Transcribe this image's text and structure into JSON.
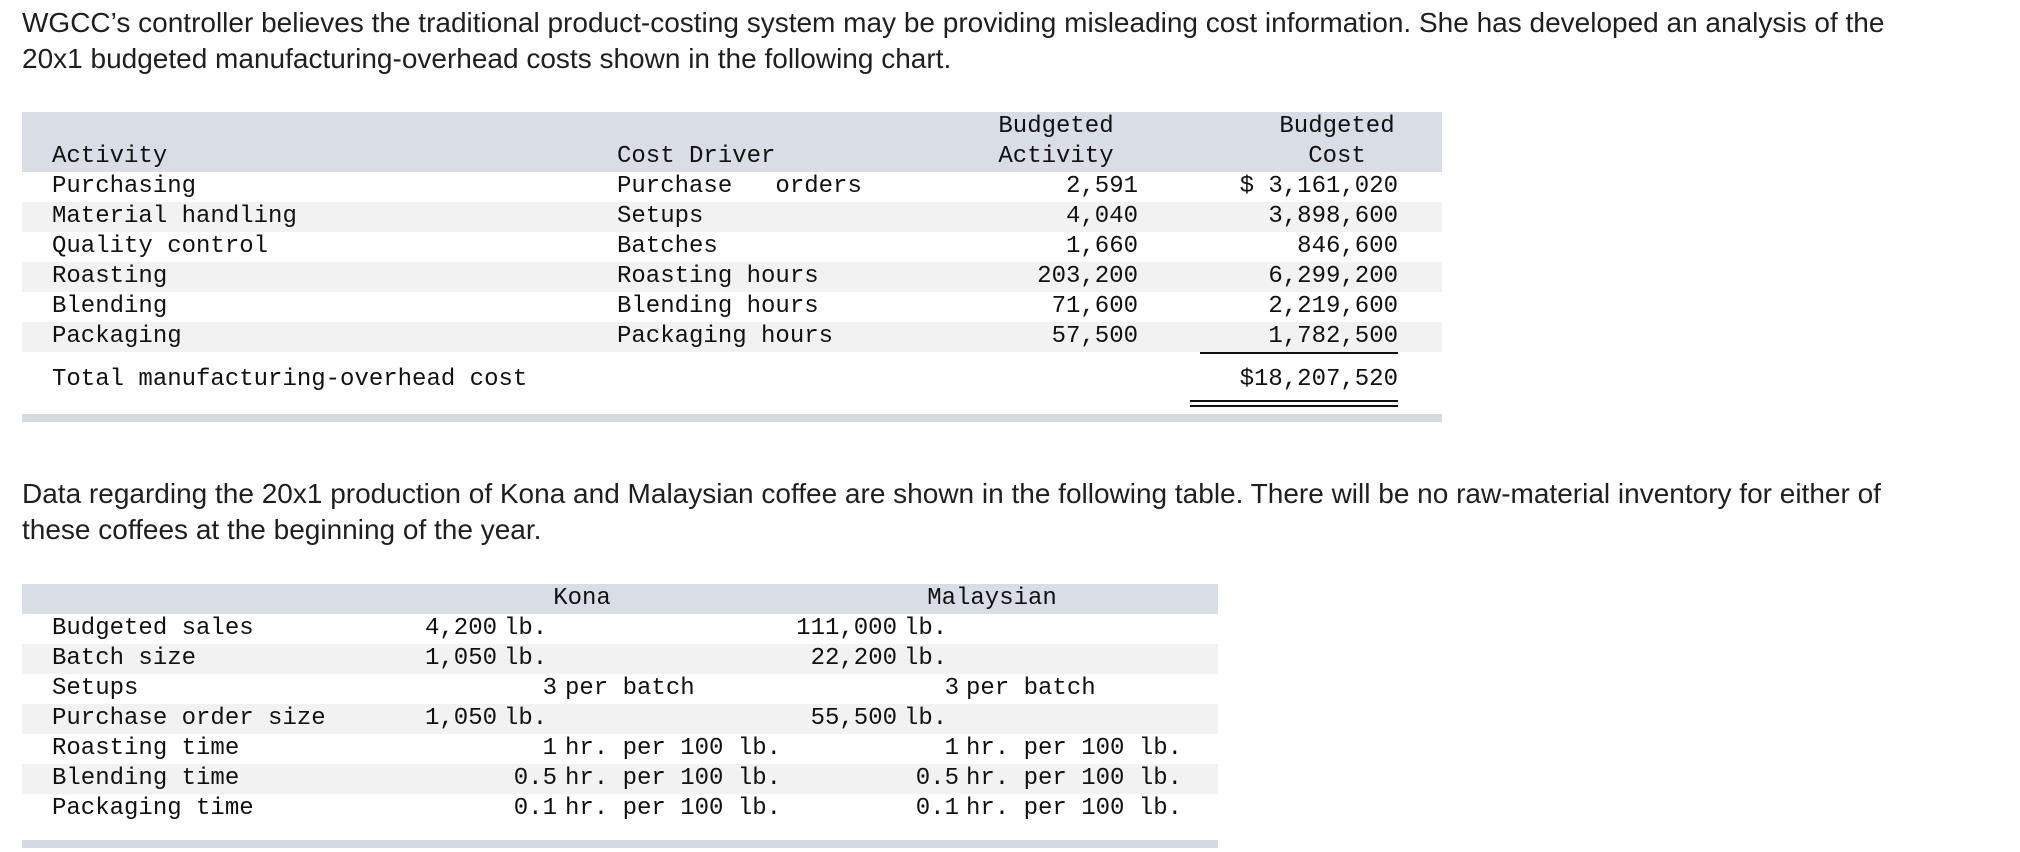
{
  "intro_paragraph": "WGCC’s controller believes the traditional product-costing system may be providing misleading cost information. She has developed an analysis of the 20x1 budgeted manufacturing-overhead costs shown in the following chart.",
  "overhead_table": {
    "headers": {
      "activity": "Activity",
      "cost_driver": "Cost Driver",
      "budgeted_activity_line1": "Budgeted",
      "budgeted_activity_line2": "Activity",
      "budgeted_cost_line1": "Budgeted",
      "budgeted_cost_line2": "Cost"
    },
    "rows": [
      {
        "activity": "Purchasing",
        "driver": "Purchase   orders",
        "budgeted_activity": "2,591",
        "budgeted_cost": "$ 3,161,020"
      },
      {
        "activity": "Material handling",
        "driver": "Setups",
        "budgeted_activity": "4,040",
        "budgeted_cost": "3,898,600"
      },
      {
        "activity": "Quality control",
        "driver": "Batches",
        "budgeted_activity": "1,660",
        "budgeted_cost": "846,600"
      },
      {
        "activity": "Roasting",
        "driver": "Roasting hours",
        "budgeted_activity": "203,200",
        "budgeted_cost": "6,299,200"
      },
      {
        "activity": "Blending",
        "driver": "Blending hours",
        "budgeted_activity": "71,600",
        "budgeted_cost": "2,219,600"
      },
      {
        "activity": "Packaging",
        "driver": "Packaging hours",
        "budgeted_activity": "57,500",
        "budgeted_cost": "1,782,500"
      }
    ],
    "total_label": "Total manufacturing-overhead cost",
    "total_value": "$18,207,520"
  },
  "second_paragraph": "Data regarding the 20x1 production of Kona and Malaysian coffee are shown in the following table. There will be no raw-material inventory for either of these coffees at the beginning of the year.",
  "production_table": {
    "headers": {
      "kona": "Kona",
      "malaysian": "Malaysian"
    },
    "rows": [
      {
        "label": "Budgeted sales",
        "kona_num": "4,200",
        "kona_unit": "lb.",
        "mal_num": "111,000",
        "mal_unit": "lb."
      },
      {
        "label": "Batch size",
        "kona_num": "1,050",
        "kona_unit": "lb.",
        "mal_num": "22,200",
        "mal_unit": "lb."
      },
      {
        "label": "Setups",
        "kona_num": "3",
        "kona_unit": "per batch",
        "mal_num": "3",
        "mal_unit": "per batch"
      },
      {
        "label": "Purchase order size",
        "kona_num": "1,050",
        "kona_unit": "lb.",
        "mal_num": "55,500",
        "mal_unit": "lb."
      },
      {
        "label": "Roasting time",
        "kona_num": "1",
        "kona_unit": "hr. per 100 lb.",
        "mal_num": "1",
        "mal_unit": "hr. per 100 lb."
      },
      {
        "label": "Blending time",
        "kona_num": "0.5",
        "kona_unit": "hr. per 100 lb.",
        "mal_num": "0.5",
        "mal_unit": "hr. per 100 lb."
      },
      {
        "label": "Packaging time",
        "kona_num": "0.1",
        "kona_unit": "hr. per 100 lb.",
        "mal_num": "0.1",
        "mal_unit": "hr. per 100 lb."
      }
    ]
  }
}
